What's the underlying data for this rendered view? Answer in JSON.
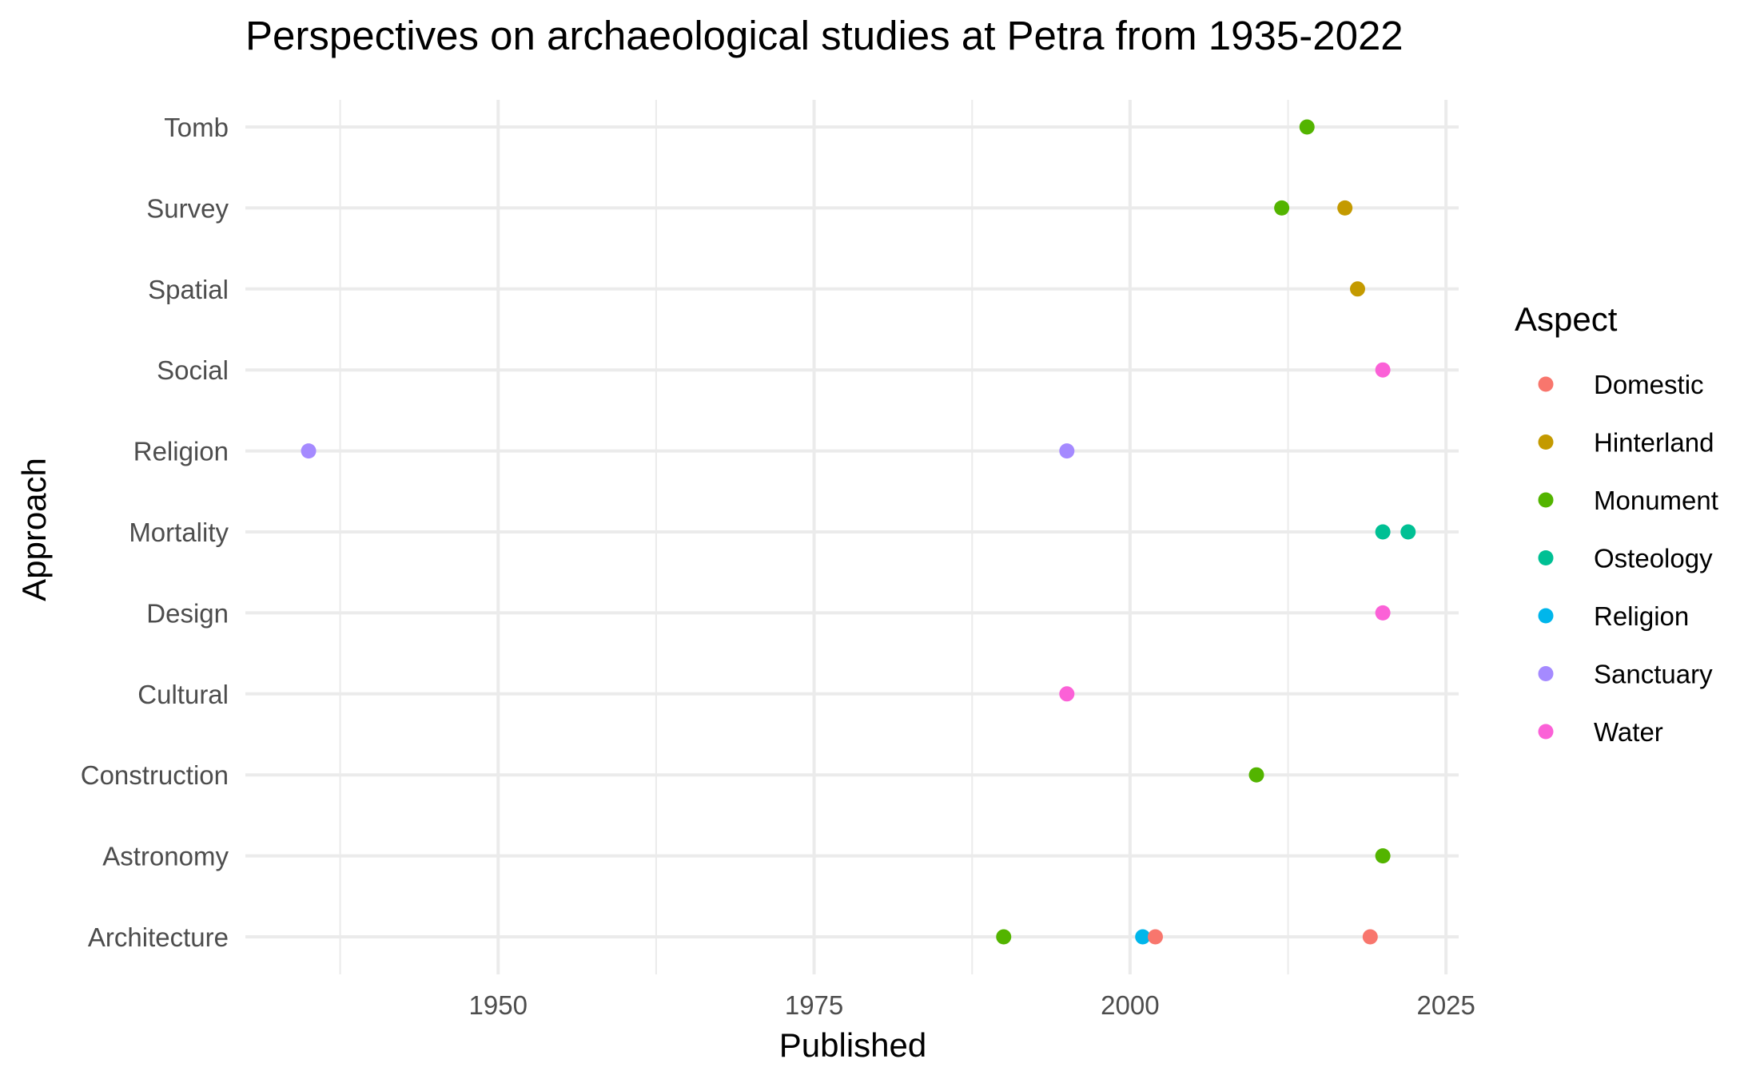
{
  "chart_data": {
    "type": "scatter",
    "title": "Perspectives on archaeological studies at Petra from 1935-2022",
    "xlabel": "Published",
    "ylabel": "Approach",
    "xlim": [
      1930,
      2026
    ],
    "x_ticks": [
      1950,
      1975,
      2000,
      2025
    ],
    "y_categories": [
      "Architecture",
      "Astronomy",
      "Construction",
      "Cultural",
      "Design",
      "Mortality",
      "Religion",
      "Social",
      "Spatial",
      "Survey",
      "Tomb"
    ],
    "grid": true,
    "legend": {
      "title": "Aspect",
      "position": "right",
      "entries": [
        {
          "name": "Domestic",
          "color": "#F8766D"
        },
        {
          "name": "Hinterland",
          "color": "#C49A00"
        },
        {
          "name": "Monument",
          "color": "#53B400"
        },
        {
          "name": "Osteology",
          "color": "#00C094"
        },
        {
          "name": "Religion",
          "color": "#00B6EB"
        },
        {
          "name": "Sanctuary",
          "color": "#A58AFF"
        },
        {
          "name": "Water",
          "color": "#FB61D7"
        }
      ]
    },
    "points": [
      {
        "x": 2014,
        "y": "Tomb",
        "aspect": "Monument"
      },
      {
        "x": 2012,
        "y": "Survey",
        "aspect": "Monument"
      },
      {
        "x": 2017,
        "y": "Survey",
        "aspect": "Hinterland"
      },
      {
        "x": 2018,
        "y": "Spatial",
        "aspect": "Hinterland"
      },
      {
        "x": 2020,
        "y": "Social",
        "aspect": "Water"
      },
      {
        "x": 1935,
        "y": "Religion",
        "aspect": "Sanctuary"
      },
      {
        "x": 1995,
        "y": "Religion",
        "aspect": "Sanctuary"
      },
      {
        "x": 2020,
        "y": "Mortality",
        "aspect": "Osteology"
      },
      {
        "x": 2022,
        "y": "Mortality",
        "aspect": "Osteology"
      },
      {
        "x": 2020,
        "y": "Design",
        "aspect": "Water"
      },
      {
        "x": 1995,
        "y": "Cultural",
        "aspect": "Water"
      },
      {
        "x": 2010,
        "y": "Construction",
        "aspect": "Monument"
      },
      {
        "x": 2020,
        "y": "Astronomy",
        "aspect": "Monument"
      },
      {
        "x": 1990,
        "y": "Architecture",
        "aspect": "Monument"
      },
      {
        "x": 2001,
        "y": "Architecture",
        "aspect": "Religion"
      },
      {
        "x": 2002,
        "y": "Architecture",
        "aspect": "Domestic"
      },
      {
        "x": 2019,
        "y": "Architecture",
        "aspect": "Domestic"
      }
    ]
  }
}
